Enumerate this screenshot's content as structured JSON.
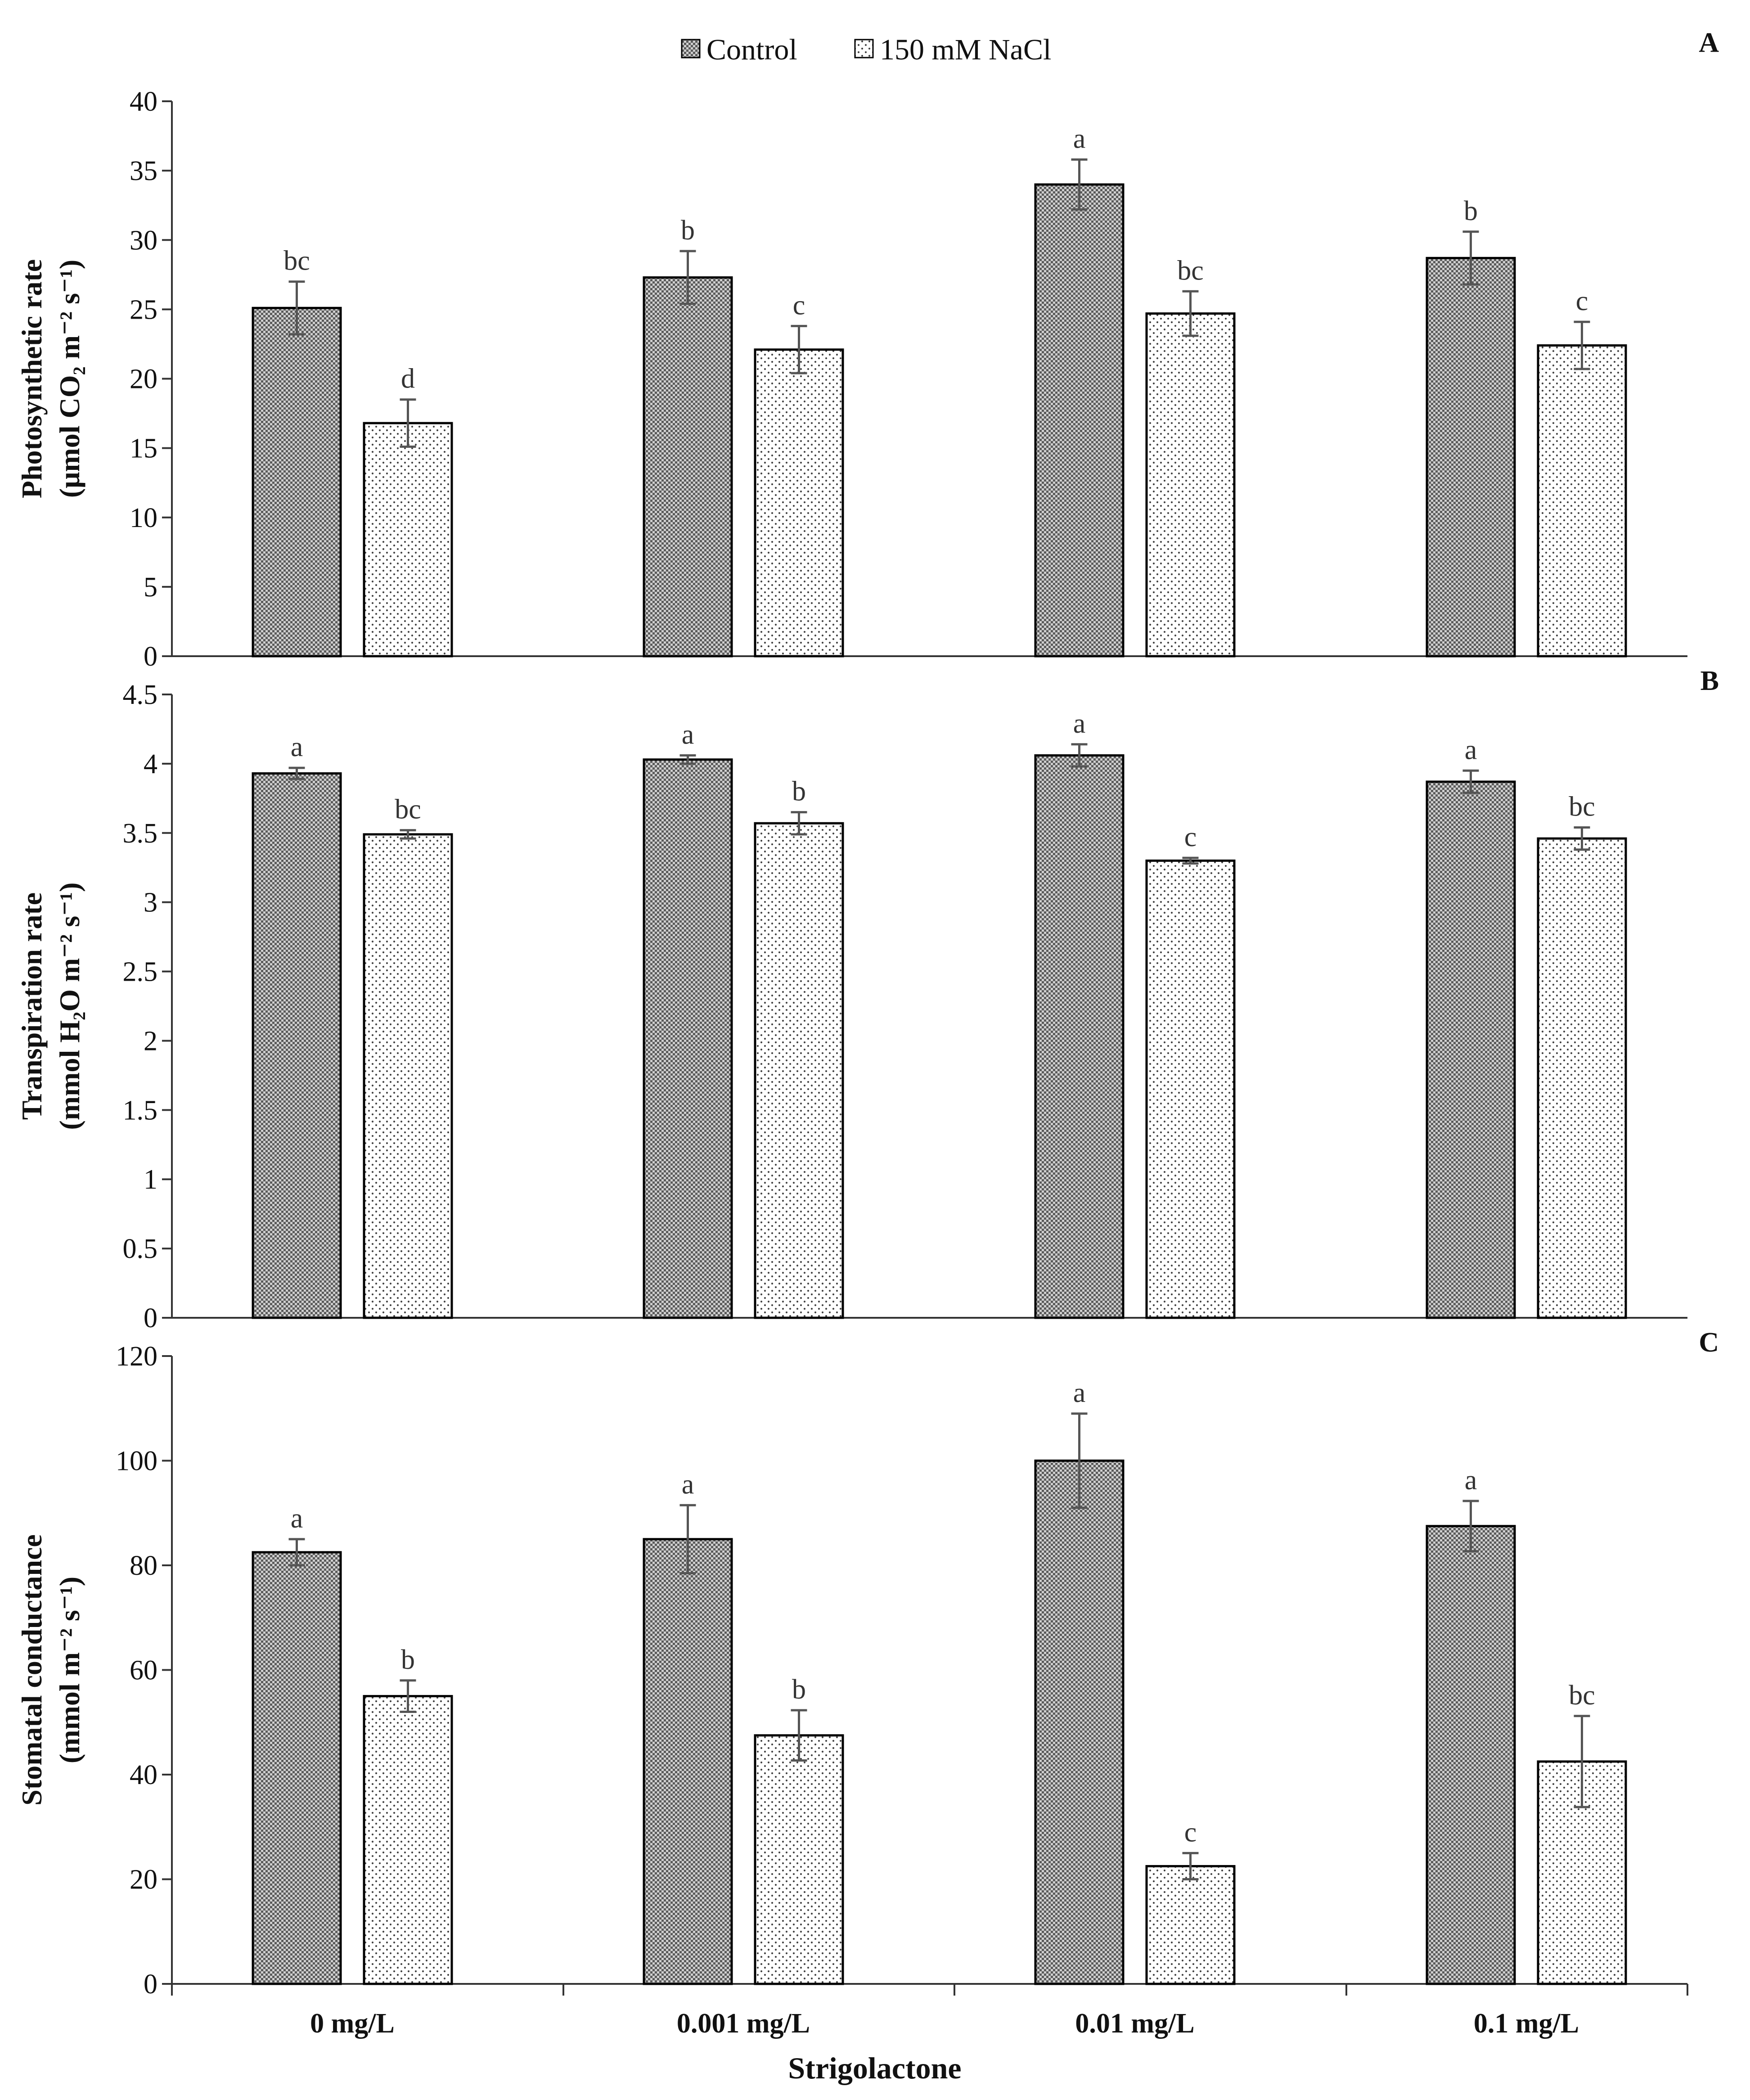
{
  "colors": {
    "control_pattern_dark": "#3a3a3a",
    "nacl_pattern_dot": "#444444",
    "axis": "#333333",
    "error_bar": "#555555"
  },
  "chart_data": [
    {
      "type": "bar",
      "panel_label": "A",
      "ylabel": [
        "Photosynthetic rate",
        "(μmol CO₂ m⁻² s⁻¹)"
      ],
      "ylim": [
        0,
        40
      ],
      "yticks": [
        "0",
        "5",
        "10",
        "15",
        "20",
        "25",
        "30",
        "35",
        "40"
      ],
      "categories": [
        "0 mg/L",
        "0.001 mg/L",
        "0.01 mg/L",
        "0.1 mg/L"
      ],
      "series": [
        {
          "name": "Control",
          "values": [
            25.1,
            27.3,
            34.0,
            28.7
          ],
          "errors": [
            1.9,
            1.9,
            1.8,
            1.9
          ],
          "letters": [
            "bc",
            "b",
            "a",
            "b"
          ]
        },
        {
          "name": "150 mM NaCl",
          "values": [
            16.8,
            22.1,
            24.7,
            22.4
          ],
          "errors": [
            1.7,
            1.7,
            1.6,
            1.7
          ],
          "letters": [
            "d",
            "c",
            "bc",
            "c"
          ]
        }
      ]
    },
    {
      "type": "bar",
      "panel_label": "B",
      "ylabel": [
        "Transpiration rate",
        "(mmol H₂O m⁻² s⁻¹)"
      ],
      "ylim": [
        0,
        4.5
      ],
      "yticks": [
        "0",
        "0.5",
        "1",
        "1.5",
        "2",
        "2.5",
        "3",
        "3.5",
        "4",
        "4.5"
      ],
      "categories": [
        "0 mg/L",
        "0.001 mg/L",
        "0.01 mg/L",
        "0.1 mg/L"
      ],
      "series": [
        {
          "name": "Control",
          "values": [
            3.93,
            4.03,
            4.06,
            3.87
          ],
          "errors": [
            0.04,
            0.03,
            0.08,
            0.08
          ],
          "letters": [
            "a",
            "a",
            "a",
            "a"
          ]
        },
        {
          "name": "150 mM NaCl",
          "values": [
            3.49,
            3.57,
            3.3,
            3.46
          ],
          "errors": [
            0.03,
            0.08,
            0.02,
            0.08
          ],
          "letters": [
            "bc",
            "b",
            "c",
            "bc"
          ]
        }
      ]
    },
    {
      "type": "bar",
      "panel_label": "C",
      "ylabel": [
        "Stomatal conductance",
        "(mmol m⁻² s⁻¹)"
      ],
      "ylim": [
        0,
        120
      ],
      "yticks": [
        "0",
        "20",
        "40",
        "60",
        "80",
        "100",
        "120"
      ],
      "categories": [
        "0 mg/L",
        "0.001 mg/L",
        "0.01 mg/L",
        "0.1 mg/L"
      ],
      "series": [
        {
          "name": "Control",
          "values": [
            82.5,
            85.0,
            100.0,
            87.5
          ],
          "errors": [
            2.5,
            6.5,
            9.0,
            4.8
          ],
          "letters": [
            "a",
            "a",
            "a",
            "a"
          ]
        },
        {
          "name": "150 mM NaCl",
          "values": [
            55.0,
            47.5,
            22.5,
            42.5
          ],
          "errors": [
            3.0,
            4.8,
            2.5,
            8.7
          ],
          "letters": [
            "b",
            "b",
            "c",
            "bc"
          ]
        }
      ]
    }
  ],
  "legend": {
    "items": [
      "Control",
      "150 mM NaCl"
    ]
  },
  "xlabel": "Strigolactone"
}
